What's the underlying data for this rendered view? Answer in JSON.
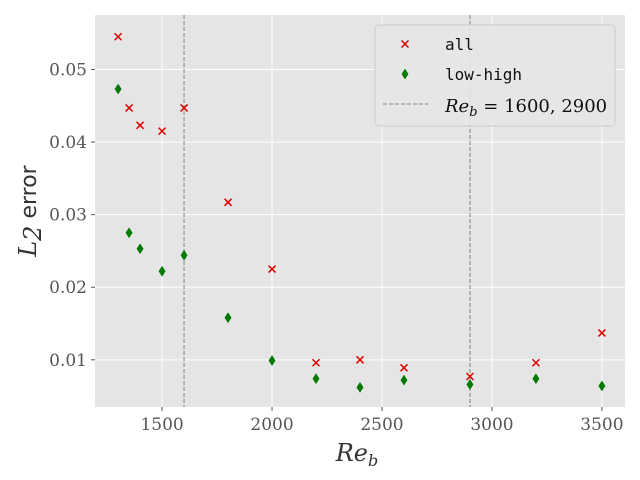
{
  "chart_data": {
    "type": "scatter",
    "xlabel_base": "Re",
    "xlabel_sub": "b",
    "ylabel_base": "L",
    "ylabel_sub": "2",
    "ylabel_rest": " error",
    "xlim": [
      1195,
      3605
    ],
    "ylim": [
      0.0035,
      0.0575
    ],
    "xticks": [
      1500,
      2000,
      2500,
      3000,
      3500
    ],
    "yticks": [
      0.01,
      0.02,
      0.03,
      0.04,
      0.05
    ],
    "xtick_labels": [
      "1500",
      "2000",
      "2500",
      "3000",
      "3500"
    ],
    "ytick_labels": [
      "0.01",
      "0.02",
      "0.03",
      "0.04",
      "0.05"
    ],
    "grid": true,
    "legend_position": "top-right",
    "vlines": {
      "x": [
        1600,
        2900
      ],
      "color": "#999999",
      "label_base": "Re",
      "label_sub": "b",
      "label_rest": " = 1600, 2900"
    },
    "series": [
      {
        "name": "all",
        "marker": "x",
        "color": "#e00000",
        "x": [
          1300,
          1350,
          1400,
          1500,
          1600,
          1800,
          2000,
          2200,
          2400,
          2600,
          2900,
          3200,
          3500
        ],
        "y": [
          0.0545,
          0.0447,
          0.0423,
          0.0415,
          0.0447,
          0.0317,
          0.0225,
          0.0096,
          0.01,
          0.0089,
          0.0077,
          0.0096,
          0.0137
        ]
      },
      {
        "name": "low-high",
        "marker": "diamond",
        "color": "#007a00",
        "x": [
          1300,
          1350,
          1400,
          1500,
          1600,
          1800,
          2000,
          2200,
          2400,
          2600,
          2900,
          3200,
          3500
        ],
        "y": [
          0.0473,
          0.0275,
          0.0253,
          0.0222,
          0.0244,
          0.0158,
          0.0099,
          0.0074,
          0.0062,
          0.0072,
          0.0066,
          0.0074,
          0.0064
        ]
      }
    ]
  }
}
